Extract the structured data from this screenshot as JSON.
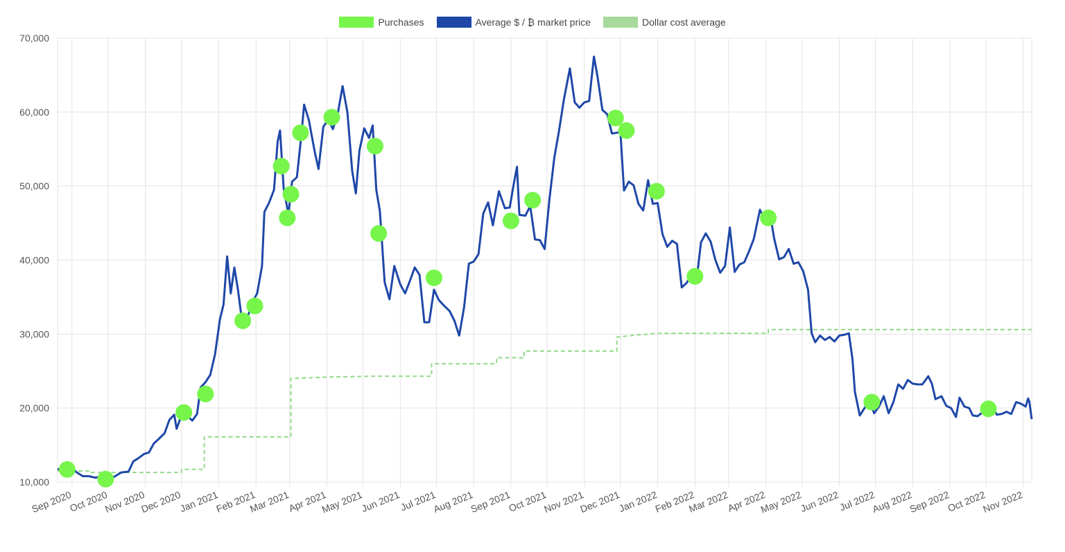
{
  "legend": {
    "purchases": "Purchases",
    "price": "Average $ / ₿ market price",
    "dca": "Dollar cost average"
  },
  "colors": {
    "purchases": "#77f54b",
    "price": "#1e47a8",
    "dca": "#93d98a",
    "grid": "#e3e3e3"
  },
  "chart_data": {
    "type": "line",
    "ylim": [
      10000,
      70000
    ],
    "yticks": [
      10000,
      20000,
      30000,
      40000,
      50000,
      60000,
      70000
    ],
    "ytick_labels": [
      "10,000",
      "20,000",
      "30,000",
      "40,000",
      "50,000",
      "60,000",
      "70,000"
    ],
    "xlim": [
      "2020-08-20",
      "2022-11-08"
    ],
    "xticks": [
      "2020-09-01",
      "2020-10-01",
      "2020-11-01",
      "2020-12-01",
      "2021-01-01",
      "2021-02-01",
      "2021-03-01",
      "2021-04-01",
      "2021-05-01",
      "2021-06-01",
      "2021-07-01",
      "2021-08-01",
      "2021-09-01",
      "2021-10-01",
      "2021-11-01",
      "2021-12-01",
      "2022-01-01",
      "2022-02-01",
      "2022-03-01",
      "2022-04-01",
      "2022-05-01",
      "2022-06-01",
      "2022-07-01",
      "2022-08-01",
      "2022-09-01",
      "2022-10-01",
      "2022-11-01"
    ],
    "xtick_labels": [
      "Sep 2020",
      "Oct 2020",
      "Nov 2020",
      "Dec 2020",
      "Jan 2021",
      "Feb 2021",
      "Mar 2021",
      "Apr 2021",
      "May 2021",
      "Jun 2021",
      "Jul 2021",
      "Aug 2021",
      "Sep 2021",
      "Oct 2021",
      "Nov 2021",
      "Dec 2021",
      "Jan 2022",
      "Feb 2022",
      "Mar 2022",
      "Apr 2022",
      "May 2022",
      "Jun 2022",
      "Jul 2022",
      "Aug 2022",
      "Sep 2022",
      "Oct 2022",
      "Nov 2022"
    ],
    "series": [
      {
        "name": "Average $ / ₿ market price",
        "points": [
          [
            "2020-08-20",
            11800
          ],
          [
            "2020-08-25",
            11400
          ],
          [
            "2020-09-01",
            11900
          ],
          [
            "2020-09-05",
            11300
          ],
          [
            "2020-09-10",
            10800
          ],
          [
            "2020-09-15",
            10800
          ],
          [
            "2020-09-20",
            10600
          ],
          [
            "2020-09-25",
            10700
          ],
          [
            "2020-10-01",
            10600
          ],
          [
            "2020-10-06",
            10700
          ],
          [
            "2020-10-12",
            11300
          ],
          [
            "2020-10-18",
            11400
          ],
          [
            "2020-10-22",
            12800
          ],
          [
            "2020-10-26",
            13200
          ],
          [
            "2020-10-31",
            13800
          ],
          [
            "2020-11-04",
            14000
          ],
          [
            "2020-11-08",
            15200
          ],
          [
            "2020-11-12",
            15800
          ],
          [
            "2020-11-17",
            16600
          ],
          [
            "2020-11-21",
            18400
          ],
          [
            "2020-11-25",
            19100
          ],
          [
            "2020-11-27",
            17200
          ],
          [
            "2020-12-01",
            19000
          ],
          [
            "2020-12-05",
            19100
          ],
          [
            "2020-12-10",
            18300
          ],
          [
            "2020-12-14",
            19200
          ],
          [
            "2020-12-17",
            22800
          ],
          [
            "2020-12-21",
            23500
          ],
          [
            "2020-12-25",
            24500
          ],
          [
            "2020-12-29",
            27300
          ],
          [
            "2021-01-02",
            32000
          ],
          [
            "2021-01-05",
            34000
          ],
          [
            "2021-01-08",
            40500
          ],
          [
            "2021-01-11",
            35500
          ],
          [
            "2021-01-14",
            39000
          ],
          [
            "2021-01-17",
            36000
          ],
          [
            "2021-01-21",
            31000
          ],
          [
            "2021-01-25",
            32300
          ],
          [
            "2021-01-29",
            34300
          ],
          [
            "2021-02-02",
            35500
          ],
          [
            "2021-02-06",
            39200
          ],
          [
            "2021-02-08",
            46500
          ],
          [
            "2021-02-12",
            47800
          ],
          [
            "2021-02-16",
            49500
          ],
          [
            "2021-02-19",
            56000
          ],
          [
            "2021-02-21",
            57500
          ],
          [
            "2021-02-24",
            49700
          ],
          [
            "2021-02-28",
            46200
          ],
          [
            "2021-03-03",
            50600
          ],
          [
            "2021-03-07",
            51200
          ],
          [
            "2021-03-11",
            57300
          ],
          [
            "2021-03-13",
            61000
          ],
          [
            "2021-03-17",
            58900
          ],
          [
            "2021-03-22",
            54500
          ],
          [
            "2021-03-25",
            52300
          ],
          [
            "2021-03-29",
            58000
          ],
          [
            "2021-04-02",
            59000
          ],
          [
            "2021-04-06",
            57700
          ],
          [
            "2021-04-10",
            59800
          ],
          [
            "2021-04-14",
            63500
          ],
          [
            "2021-04-18",
            60000
          ],
          [
            "2021-04-22",
            52000
          ],
          [
            "2021-04-25",
            49000
          ],
          [
            "2021-04-28",
            54800
          ],
          [
            "2021-05-02",
            57800
          ],
          [
            "2021-05-06",
            56500
          ],
          [
            "2021-05-09",
            58200
          ],
          [
            "2021-05-12",
            49500
          ],
          [
            "2021-05-15",
            46600
          ],
          [
            "2021-05-19",
            37000
          ],
          [
            "2021-05-23",
            34700
          ],
          [
            "2021-05-27",
            39200
          ],
          [
            "2021-06-01",
            36700
          ],
          [
            "2021-06-05",
            35500
          ],
          [
            "2021-06-09",
            37200
          ],
          [
            "2021-06-13",
            39000
          ],
          [
            "2021-06-17",
            38000
          ],
          [
            "2021-06-21",
            31600
          ],
          [
            "2021-06-25",
            31600
          ],
          [
            "2021-06-29",
            36000
          ],
          [
            "2021-07-03",
            34600
          ],
          [
            "2021-07-07",
            33900
          ],
          [
            "2021-07-12",
            33100
          ],
          [
            "2021-07-16",
            31800
          ],
          [
            "2021-07-20",
            29800
          ],
          [
            "2021-07-24",
            33600
          ],
          [
            "2021-07-28",
            39500
          ],
          [
            "2021-08-01",
            39800
          ],
          [
            "2021-08-05",
            40800
          ],
          [
            "2021-08-09",
            46300
          ],
          [
            "2021-08-13",
            47800
          ],
          [
            "2021-08-17",
            44700
          ],
          [
            "2021-08-22",
            49300
          ],
          [
            "2021-08-27",
            47000
          ],
          [
            "2021-08-31",
            47100
          ],
          [
            "2021-09-03",
            50000
          ],
          [
            "2021-09-06",
            52600
          ],
          [
            "2021-09-08",
            46100
          ],
          [
            "2021-09-13",
            46000
          ],
          [
            "2021-09-17",
            47300
          ],
          [
            "2021-09-21",
            42800
          ],
          [
            "2021-09-25",
            42700
          ],
          [
            "2021-09-29",
            41500
          ],
          [
            "2021-10-03",
            48200
          ],
          [
            "2021-10-07",
            53800
          ],
          [
            "2021-10-11",
            57500
          ],
          [
            "2021-10-15",
            61700
          ],
          [
            "2021-10-20",
            65900
          ],
          [
            "2021-10-24",
            61300
          ],
          [
            "2021-10-28",
            60600
          ],
          [
            "2021-11-01",
            61300
          ],
          [
            "2021-11-05",
            61500
          ],
          [
            "2021-11-09",
            67500
          ],
          [
            "2021-11-12",
            64800
          ],
          [
            "2021-11-16",
            60300
          ],
          [
            "2021-11-20",
            59700
          ],
          [
            "2021-11-24",
            57100
          ],
          [
            "2021-11-28",
            57200
          ],
          [
            "2021-12-01",
            57300
          ],
          [
            "2021-12-04",
            49400
          ],
          [
            "2021-12-08",
            50600
          ],
          [
            "2021-12-12",
            50100
          ],
          [
            "2021-12-16",
            47600
          ],
          [
            "2021-12-20",
            46700
          ],
          [
            "2021-12-24",
            50800
          ],
          [
            "2021-12-28",
            47600
          ],
          [
            "2022-01-01",
            47700
          ],
          [
            "2022-01-05",
            43500
          ],
          [
            "2022-01-09",
            41800
          ],
          [
            "2022-01-13",
            42600
          ],
          [
            "2022-01-17",
            42200
          ],
          [
            "2022-01-21",
            36300
          ],
          [
            "2022-01-25",
            36900
          ],
          [
            "2022-01-29",
            37900
          ],
          [
            "2022-02-02",
            36900
          ],
          [
            "2022-02-06",
            42400
          ],
          [
            "2022-02-10",
            43600
          ],
          [
            "2022-02-14",
            42500
          ],
          [
            "2022-02-18",
            40000
          ],
          [
            "2022-02-22",
            38300
          ],
          [
            "2022-02-26",
            39200
          ],
          [
            "2022-03-02",
            44400
          ],
          [
            "2022-03-06",
            38400
          ],
          [
            "2022-03-10",
            39400
          ],
          [
            "2022-03-14",
            39700
          ],
          [
            "2022-03-18",
            41200
          ],
          [
            "2022-03-22",
            42900
          ],
          [
            "2022-03-27",
            46800
          ],
          [
            "2022-03-31",
            45500
          ],
          [
            "2022-04-04",
            46600
          ],
          [
            "2022-04-08",
            42800
          ],
          [
            "2022-04-12",
            40100
          ],
          [
            "2022-04-16",
            40400
          ],
          [
            "2022-04-20",
            41500
          ],
          [
            "2022-04-24",
            39500
          ],
          [
            "2022-04-28",
            39700
          ],
          [
            "2022-05-02",
            38500
          ],
          [
            "2022-05-06",
            36000
          ],
          [
            "2022-05-09",
            30100
          ],
          [
            "2022-05-12",
            28900
          ],
          [
            "2022-05-16",
            29800
          ],
          [
            "2022-05-20",
            29200
          ],
          [
            "2022-05-24",
            29600
          ],
          [
            "2022-05-28",
            29000
          ],
          [
            "2022-06-01",
            29800
          ],
          [
            "2022-06-05",
            29900
          ],
          [
            "2022-06-09",
            30100
          ],
          [
            "2022-06-12",
            26600
          ],
          [
            "2022-06-14",
            22200
          ],
          [
            "2022-06-18",
            19000
          ],
          [
            "2022-06-22",
            20000
          ],
          [
            "2022-06-26",
            21000
          ],
          [
            "2022-06-30",
            19300
          ],
          [
            "2022-07-04",
            20200
          ],
          [
            "2022-07-08",
            21600
          ],
          [
            "2022-07-12",
            19300
          ],
          [
            "2022-07-16",
            20800
          ],
          [
            "2022-07-20",
            23200
          ],
          [
            "2022-07-24",
            22600
          ],
          [
            "2022-07-28",
            23800
          ],
          [
            "2022-08-01",
            23300
          ],
          [
            "2022-08-05",
            23200
          ],
          [
            "2022-08-09",
            23200
          ],
          [
            "2022-08-14",
            24300
          ],
          [
            "2022-08-17",
            23300
          ],
          [
            "2022-08-20",
            21200
          ],
          [
            "2022-08-25",
            21600
          ],
          [
            "2022-08-29",
            20300
          ],
          [
            "2022-09-02",
            20000
          ],
          [
            "2022-09-06",
            18800
          ],
          [
            "2022-09-09",
            21400
          ],
          [
            "2022-09-13",
            20200
          ],
          [
            "2022-09-17",
            20000
          ],
          [
            "2022-09-20",
            19000
          ],
          [
            "2022-09-24",
            18900
          ],
          [
            "2022-09-28",
            19400
          ],
          [
            "2022-10-02",
            19300
          ],
          [
            "2022-10-06",
            20200
          ],
          [
            "2022-10-10",
            19100
          ],
          [
            "2022-10-14",
            19200
          ],
          [
            "2022-10-18",
            19500
          ],
          [
            "2022-10-22",
            19200
          ],
          [
            "2022-10-26",
            20800
          ],
          [
            "2022-10-30",
            20600
          ],
          [
            "2022-11-03",
            20200
          ],
          [
            "2022-11-05",
            21300
          ],
          [
            "2022-11-06",
            20900
          ],
          [
            "2022-11-08",
            18500
          ]
        ]
      },
      {
        "name": "Dollar cost average",
        "points": [
          [
            "2020-08-20",
            11500
          ],
          [
            "2020-09-17",
            11500
          ],
          [
            "2020-09-17",
            11300
          ],
          [
            "2020-12-01",
            11300
          ],
          [
            "2020-12-01",
            11700
          ],
          [
            "2020-12-20",
            11700
          ],
          [
            "2020-12-20",
            16100
          ],
          [
            "2021-03-02",
            16100
          ],
          [
            "2021-03-02",
            24000
          ],
          [
            "2021-04-05",
            24200
          ],
          [
            "2021-05-10",
            24300
          ],
          [
            "2021-06-27",
            24300
          ],
          [
            "2021-06-27",
            26000
          ],
          [
            "2021-08-20",
            26000
          ],
          [
            "2021-08-20",
            26800
          ],
          [
            "2021-09-12",
            26800
          ],
          [
            "2021-09-12",
            27700
          ],
          [
            "2021-11-28",
            27700
          ],
          [
            "2021-11-28",
            29600
          ],
          [
            "2021-12-10",
            29800
          ],
          [
            "2021-12-31",
            30100
          ],
          [
            "2022-04-03",
            30100
          ],
          [
            "2022-04-03",
            30600
          ],
          [
            "2022-11-08",
            30600
          ]
        ]
      }
    ],
    "purchases": [
      [
        "2020-08-28",
        11700
      ],
      [
        "2020-09-29",
        10400
      ],
      [
        "2020-12-03",
        19400
      ],
      [
        "2020-12-21",
        21900
      ],
      [
        "2021-01-21",
        31800
      ],
      [
        "2021-01-31",
        33800
      ],
      [
        "2021-02-22",
        52700
      ],
      [
        "2021-02-27",
        45700
      ],
      [
        "2021-03-02",
        48900
      ],
      [
        "2021-03-10",
        57200
      ],
      [
        "2021-04-05",
        59300
      ],
      [
        "2021-05-11",
        55400
      ],
      [
        "2021-05-14",
        43600
      ],
      [
        "2021-06-29",
        37600
      ],
      [
        "2021-09-01",
        45300
      ],
      [
        "2021-09-19",
        48100
      ],
      [
        "2021-11-27",
        59200
      ],
      [
        "2021-12-06",
        57500
      ],
      [
        "2021-12-31",
        49300
      ],
      [
        "2022-02-01",
        37800
      ],
      [
        "2022-04-03",
        45700
      ],
      [
        "2022-06-28",
        20800
      ],
      [
        "2022-10-03",
        19900
      ]
    ]
  }
}
